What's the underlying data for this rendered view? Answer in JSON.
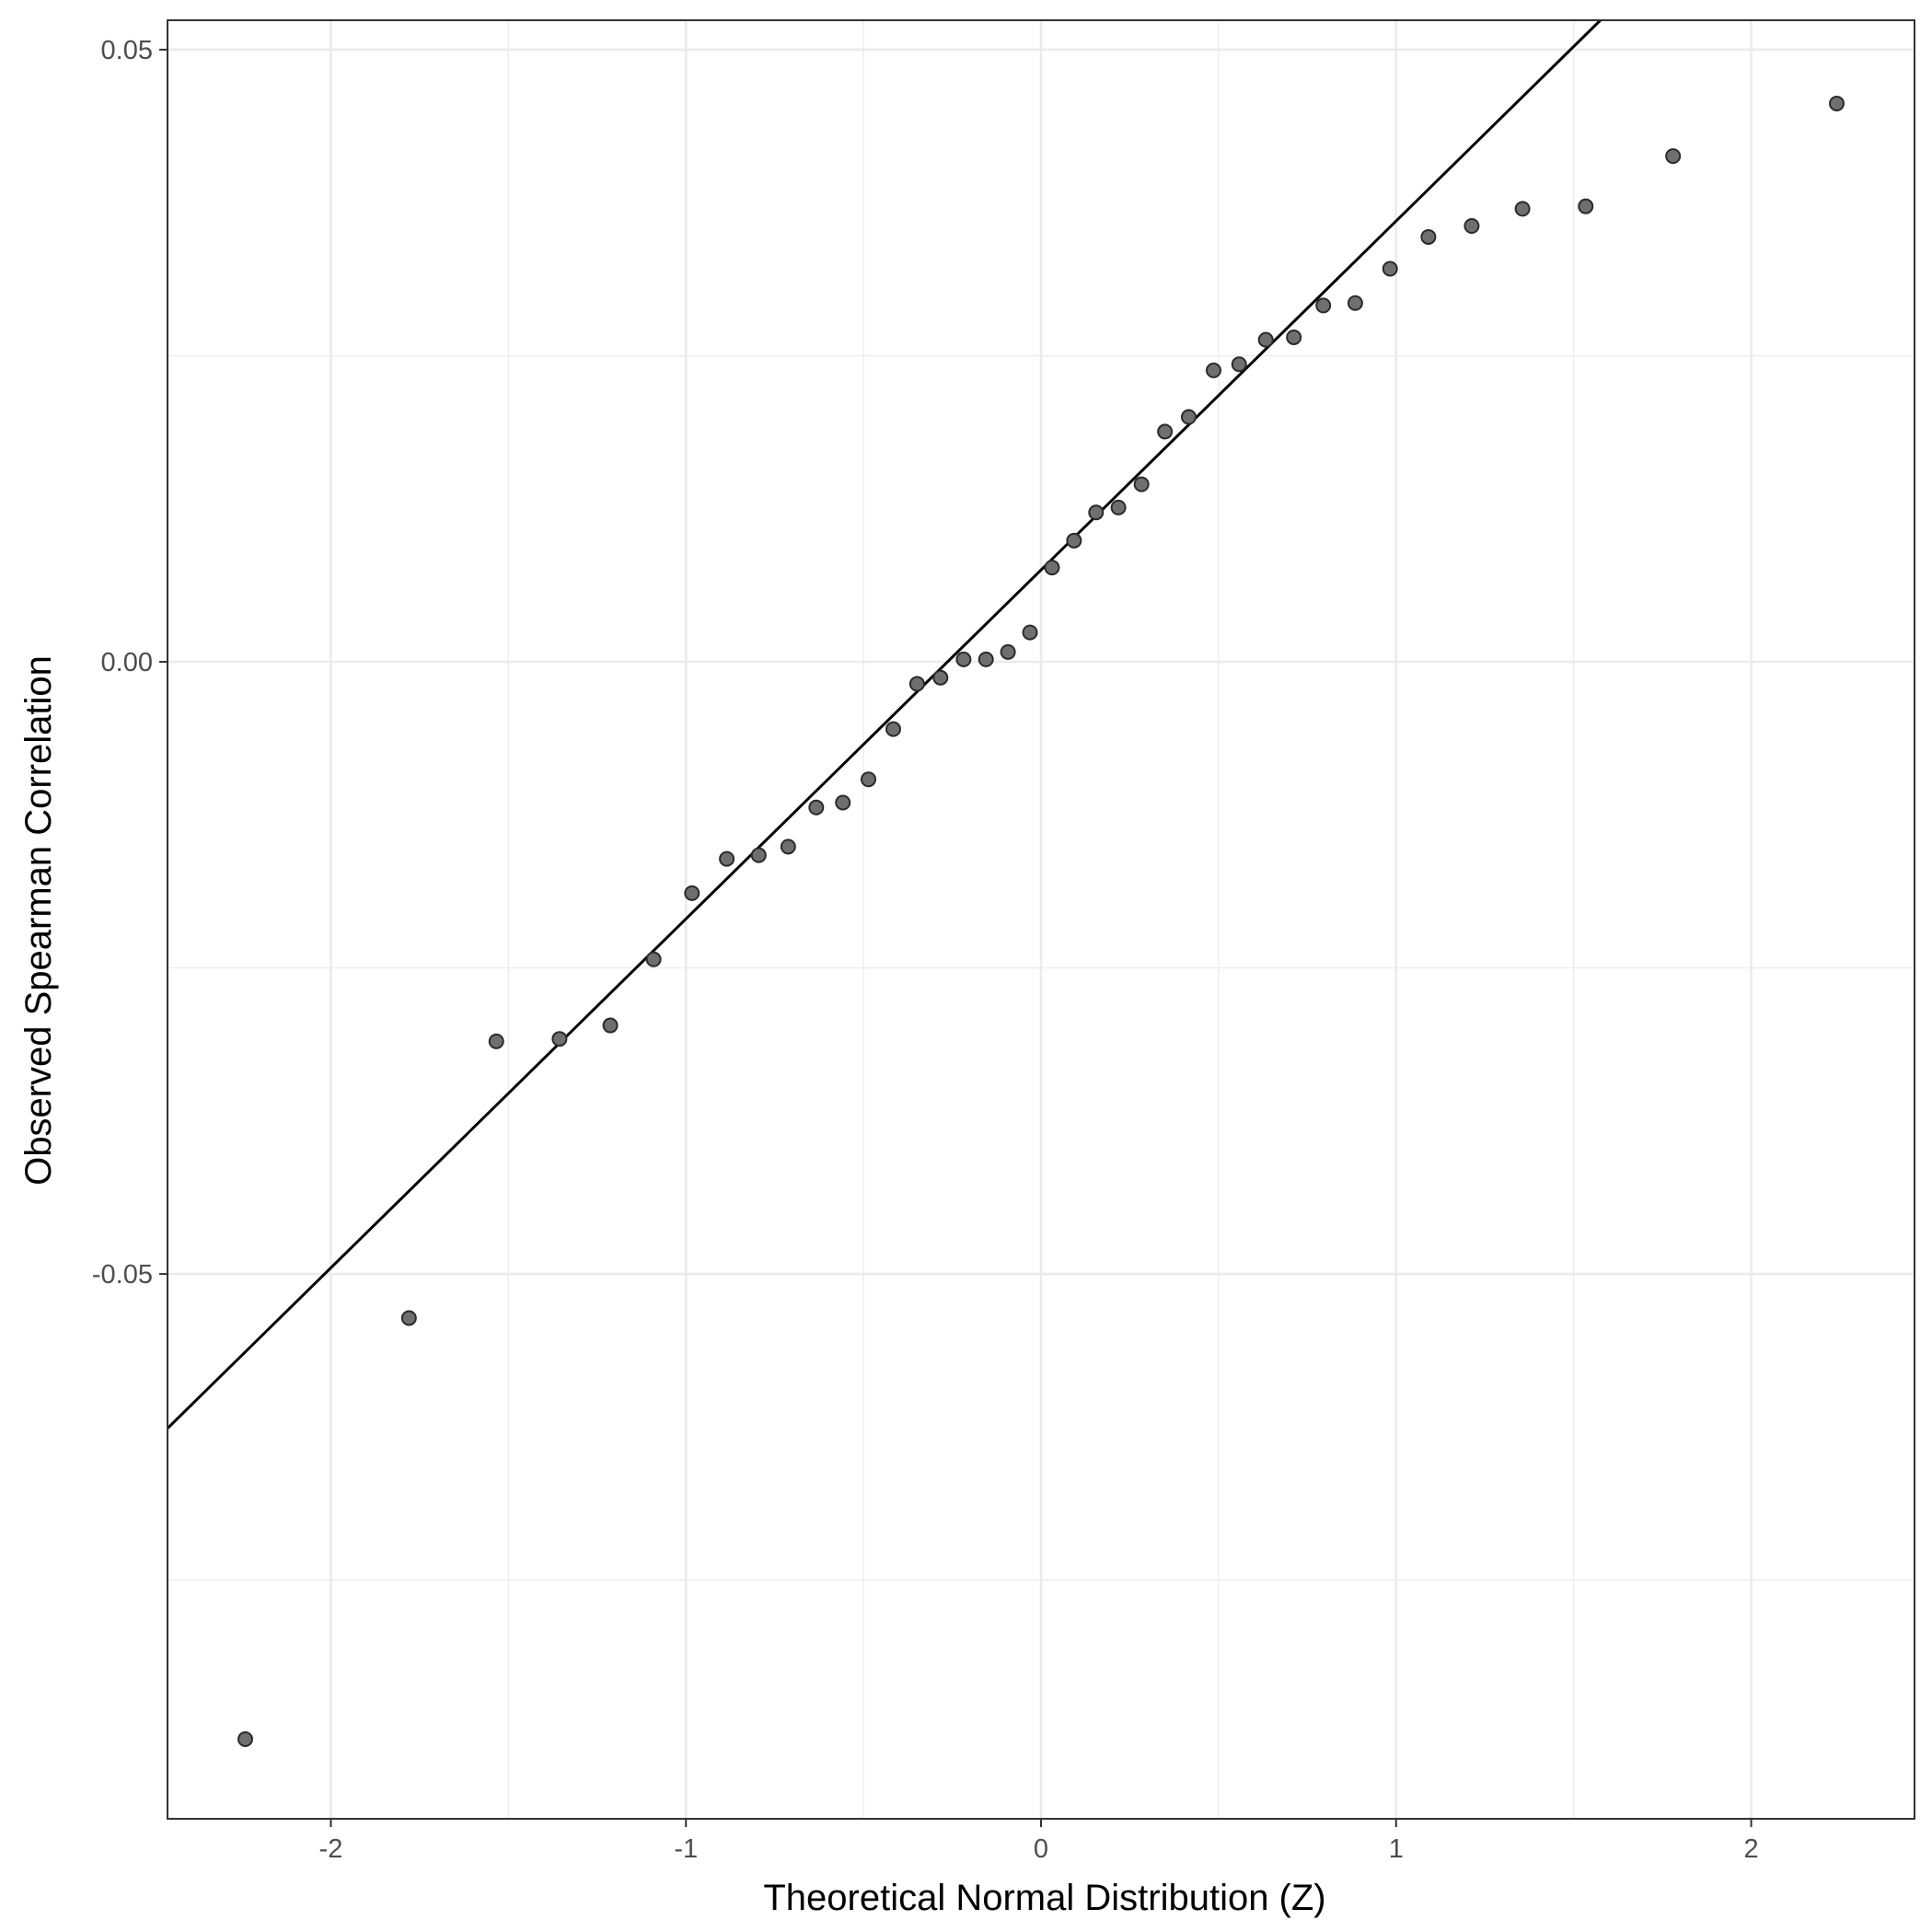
{
  "chart_data": {
    "type": "scatter",
    "title": "",
    "xlabel": "Theoretical Normal Distribution (Z)",
    "ylabel": "Observed Spearman Correlation",
    "xlim": [
      -2.46,
      2.46
    ],
    "ylim": [
      -0.0945,
      0.0524
    ],
    "x_ticks": [
      -2,
      -1,
      0,
      1,
      2
    ],
    "x_tick_labels": [
      "-2",
      "-1",
      "0",
      "1",
      "2"
    ],
    "y_ticks": [
      -0.05,
      0.0,
      0.05
    ],
    "y_tick_labels": [
      "-0.05",
      "0.00",
      "0.05"
    ],
    "grid": true,
    "legend": "none",
    "reference_line": {
      "intercept": 0.0075,
      "slope": 0.0285
    },
    "colors": {
      "points": "#6f6f6f",
      "point_stroke": "#2b2b2b",
      "line": "#000000",
      "grid": "#ebebeb",
      "panel_border": "#333333"
    },
    "points": {
      "x": [
        -2.241,
        -1.78,
        -1.534,
        -1.356,
        -1.213,
        -1.091,
        -0.983,
        -0.885,
        -0.795,
        -0.712,
        -0.633,
        -0.558,
        -0.486,
        -0.416,
        -0.349,
        -0.283,
        -0.218,
        -0.155,
        -0.093,
        -0.031,
        0.031,
        0.093,
        0.155,
        0.218,
        0.283,
        0.349,
        0.416,
        0.486,
        0.558,
        0.633,
        0.712,
        0.795,
        0.885,
        0.983,
        1.091,
        1.213,
        1.356,
        1.534,
        1.78,
        2.241
      ],
      "y": [
        -0.088,
        -0.0536,
        -0.031,
        -0.0308,
        -0.0297,
        -0.0243,
        -0.0189,
        -0.0161,
        -0.0158,
        -0.0151,
        -0.0119,
        -0.0115,
        -0.0096,
        -0.0055,
        -0.0018,
        -0.0013,
        0.0002,
        0.0002,
        0.0008,
        0.0024,
        0.0077,
        0.0099,
        0.0122,
        0.0126,
        0.0145,
        0.0188,
        0.02,
        0.0238,
        0.0243,
        0.0263,
        0.0265,
        0.0291,
        0.0293,
        0.0321,
        0.0347,
        0.0356,
        0.037,
        0.0372,
        0.0413,
        0.0456
      ]
    }
  }
}
